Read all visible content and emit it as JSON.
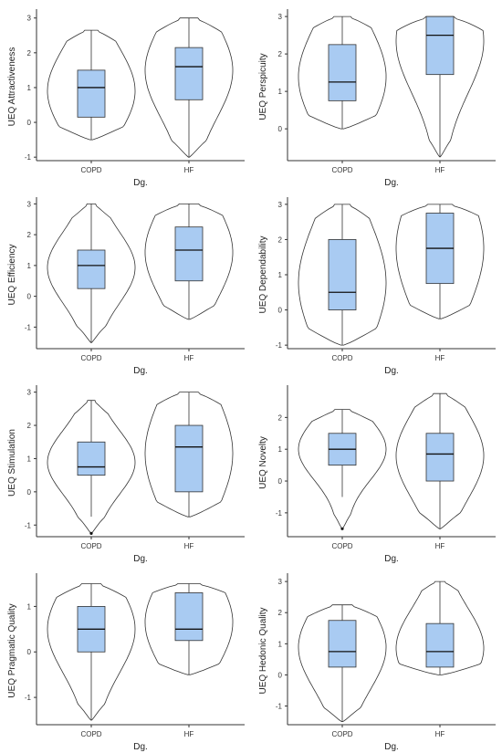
{
  "colors": {
    "box_fill": "#a9cbf2",
    "outline": "#333333",
    "axis": "#333333",
    "background": "#ffffff"
  },
  "chart_data": [
    {
      "type": "violin",
      "xlabel": "Dg.",
      "ylabel": "UEQ Attractiveness",
      "categories": [
        "COPD",
        "HF"
      ],
      "ylim": [
        -1.1,
        3.15
      ],
      "yticks": [
        -1,
        0,
        1,
        2,
        3
      ],
      "series": [
        {
          "category": "COPD",
          "violin_range": [
            -0.5,
            2.65
          ],
          "q1": 0.15,
          "median": 1.0,
          "q3": 1.5,
          "whisker_low": -0.5,
          "whisker_high": 2.65,
          "outliers": []
        },
        {
          "category": "HF",
          "violin_range": [
            -1.0,
            3.0
          ],
          "q1": 0.65,
          "median": 1.6,
          "q3": 2.15,
          "whisker_low": -1.0,
          "whisker_high": 3.0,
          "outliers": []
        }
      ]
    },
    {
      "type": "violin",
      "xlabel": "Dg.",
      "ylabel": "UEQ Perspicuity",
      "categories": [
        "COPD",
        "HF"
      ],
      "ylim": [
        -0.85,
        3.1
      ],
      "yticks": [
        0,
        1,
        2,
        3
      ],
      "series": [
        {
          "category": "COPD",
          "violin_range": [
            0.0,
            3.0
          ],
          "q1": 0.75,
          "median": 1.25,
          "q3": 2.25,
          "whisker_low": 0.0,
          "whisker_high": 3.0,
          "outliers": []
        },
        {
          "category": "HF",
          "violin_range": [
            -0.75,
            3.0
          ],
          "q1": 1.45,
          "median": 2.5,
          "q3": 3.0,
          "whisker_low": -0.75,
          "whisker_high": 3.0,
          "outliers": []
        }
      ]
    },
    {
      "type": "violin",
      "xlabel": "Dg.",
      "ylabel": "UEQ Efficiency",
      "categories": [
        "COPD",
        "HF"
      ],
      "ylim": [
        -1.7,
        3.1
      ],
      "yticks": [
        -1,
        0,
        1,
        2,
        3
      ],
      "series": [
        {
          "category": "COPD",
          "violin_range": [
            -1.5,
            3.0
          ],
          "q1": 0.25,
          "median": 1.0,
          "q3": 1.5,
          "whisker_low": -1.5,
          "whisker_high": 3.0,
          "outliers": []
        },
        {
          "category": "HF",
          "violin_range": [
            -0.75,
            3.0
          ],
          "q1": 0.5,
          "median": 1.5,
          "q3": 2.25,
          "whisker_low": -0.75,
          "whisker_high": 3.0,
          "outliers": []
        }
      ]
    },
    {
      "type": "violin",
      "xlabel": "Dg.",
      "ylabel": "UEQ Dependability",
      "categories": [
        "COPD",
        "HF"
      ],
      "ylim": [
        -1.1,
        3.1
      ],
      "yticks": [
        -1,
        0,
        1,
        2,
        3
      ],
      "series": [
        {
          "category": "COPD",
          "violin_range": [
            -1.0,
            3.0
          ],
          "q1": 0.0,
          "median": 0.5,
          "q3": 2.0,
          "whisker_low": -1.0,
          "whisker_high": 3.0,
          "outliers": []
        },
        {
          "category": "HF",
          "violin_range": [
            -0.25,
            3.0
          ],
          "q1": 0.75,
          "median": 1.75,
          "q3": 2.75,
          "whisker_low": -0.25,
          "whisker_high": 3.0,
          "outliers": []
        }
      ]
    },
    {
      "type": "violin",
      "xlabel": "Dg.",
      "ylabel": "UEQ Stimulation",
      "categories": [
        "COPD",
        "HF"
      ],
      "ylim": [
        -1.35,
        3.1
      ],
      "yticks": [
        -1,
        0,
        1,
        2,
        3
      ],
      "series": [
        {
          "category": "COPD",
          "violin_range": [
            -1.25,
            2.75
          ],
          "q1": 0.5,
          "median": 0.75,
          "q3": 1.5,
          "whisker_low": -0.75,
          "whisker_high": 2.75,
          "outliers": [
            -1.25
          ]
        },
        {
          "category": "HF",
          "violin_range": [
            -0.75,
            3.0
          ],
          "q1": 0.0,
          "median": 1.35,
          "q3": 2.0,
          "whisker_low": -0.75,
          "whisker_high": 3.0,
          "outliers": []
        }
      ]
    },
    {
      "type": "violin",
      "xlabel": "Dg.",
      "ylabel": "UEQ Novelty",
      "categories": [
        "COPD",
        "HF"
      ],
      "ylim": [
        -1.75,
        2.9
      ],
      "yticks": [
        -1,
        0,
        1,
        2
      ],
      "series": [
        {
          "category": "COPD",
          "violin_range": [
            -1.5,
            2.25
          ],
          "q1": 0.5,
          "median": 1.0,
          "q3": 1.5,
          "whisker_low": -0.5,
          "whisker_high": 2.25,
          "outliers": [
            -1.5
          ]
        },
        {
          "category": "HF",
          "violin_range": [
            -1.5,
            2.75
          ],
          "q1": 0.0,
          "median": 0.85,
          "q3": 1.5,
          "whisker_low": -1.5,
          "whisker_high": 2.75,
          "outliers": []
        }
      ]
    },
    {
      "type": "violin",
      "xlabel": "Dg.",
      "ylabel": "UEQ Pragmatic Quality",
      "categories": [
        "COPD",
        "HF"
      ],
      "ylim": [
        -1.6,
        1.65
      ],
      "yticks": [
        -1,
        0,
        1
      ],
      "series": [
        {
          "category": "COPD",
          "violin_range": [
            -1.5,
            1.5
          ],
          "q1": 0.0,
          "median": 0.5,
          "q3": 1.0,
          "whisker_low": -1.5,
          "whisker_high": 1.5,
          "outliers": []
        },
        {
          "category": "HF",
          "violin_range": [
            -0.5,
            1.5
          ],
          "q1": 0.25,
          "median": 0.5,
          "q3": 1.3,
          "whisker_low": -0.5,
          "whisker_high": 1.5,
          "outliers": []
        }
      ]
    },
    {
      "type": "violin",
      "xlabel": "Dg.",
      "ylabel": "UEQ Hedonic Quality",
      "categories": [
        "COPD",
        "HF"
      ],
      "ylim": [
        -1.6,
        3.15
      ],
      "yticks": [
        -1,
        0,
        1,
        2,
        3
      ],
      "series": [
        {
          "category": "COPD",
          "violin_range": [
            -1.5,
            2.25
          ],
          "q1": 0.25,
          "median": 0.75,
          "q3": 1.75,
          "whisker_low": -1.5,
          "whisker_high": 2.25,
          "outliers": []
        },
        {
          "category": "HF",
          "violin_range": [
            0.0,
            3.0
          ],
          "q1": 0.25,
          "median": 0.75,
          "q3": 1.65,
          "whisker_low": 0.0,
          "whisker_high": 3.0,
          "outliers": []
        }
      ]
    }
  ]
}
